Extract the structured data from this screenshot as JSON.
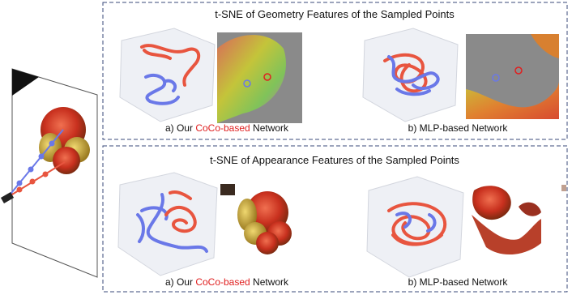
{
  "panels": [
    {
      "title": "t-SNE of Geometry Features of the Sampled Points",
      "captions": [
        {
          "prefix": "a) Our ",
          "highlight": "CoCo-based",
          "suffix": " Network"
        },
        {
          "text": "b) MLP-based Network"
        }
      ]
    },
    {
      "title": "t-SNE of Appearance Features of the Sampled Points",
      "captions": [
        {
          "prefix": "a) Our ",
          "highlight": "CoCo-based",
          "suffix": " Network"
        },
        {
          "text": "b) MLP-based Network"
        }
      ]
    }
  ]
}
